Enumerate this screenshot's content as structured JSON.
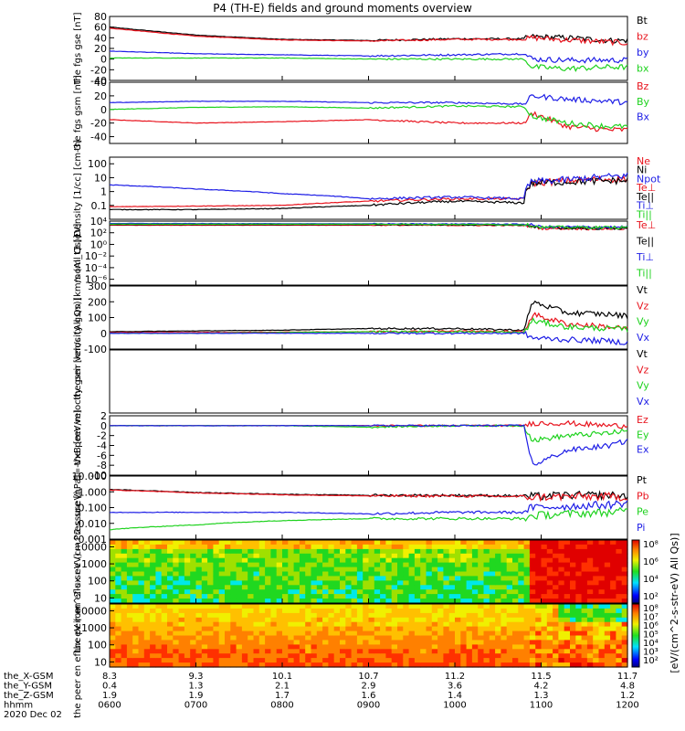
{
  "title": "P4 (TH-E) fields and ground moments overview",
  "colors": {
    "black": "#000000",
    "red": "#e8141e",
    "green": "#1ed21e",
    "blue": "#1e1ee6"
  },
  "chart_data": [
    {
      "type": "line",
      "title": "the fgs gse [nT]",
      "ylabel": "the fgs gse [nT]",
      "ylim": [
        -40,
        80
      ],
      "yticks": [
        "80",
        "60",
        "40",
        "20",
        "0",
        "-20",
        "-40"
      ],
      "series": [
        {
          "name": "Bt",
          "color": "black",
          "x": [
            6,
            7,
            8,
            9,
            10,
            10.8,
            10.9,
            11.3,
            11.8,
            12
          ],
          "values": [
            60,
            45,
            37,
            35,
            38,
            38,
            42,
            40,
            35,
            35
          ]
        },
        {
          "name": "bz",
          "color": "red",
          "x": [
            6,
            7,
            8,
            9,
            10,
            10.8,
            10.9,
            11.3,
            11.8,
            12
          ],
          "values": [
            58,
            43,
            36,
            34,
            37,
            37,
            40,
            36,
            32,
            30
          ]
        },
        {
          "name": "by",
          "color": "blue",
          "x": [
            6,
            7,
            8,
            9,
            10,
            10.8,
            10.9,
            11.3,
            11.8,
            12
          ],
          "values": [
            15,
            10,
            8,
            6,
            8,
            10,
            0,
            -2,
            -2,
            -2
          ]
        },
        {
          "name": "bx",
          "color": "green",
          "x": [
            6,
            7,
            8,
            9,
            10,
            10.8,
            10.9,
            11.3,
            11.8,
            12
          ],
          "values": [
            2,
            2,
            2,
            0,
            0,
            0,
            -15,
            -18,
            -15,
            -15
          ]
        }
      ],
      "legend": [
        "Bt",
        "bz",
        "by",
        "bx"
      ]
    },
    {
      "type": "line",
      "title": "the fgs gsm [nT]",
      "ylabel": "the fgs gsm [nT]",
      "ylim": [
        -50,
        40
      ],
      "yticks": [
        "40",
        "20",
        "0",
        "-20",
        "-40"
      ],
      "series": [
        {
          "name": "Bz",
          "color": "red",
          "x": [
            6,
            7,
            8,
            9,
            10,
            10.8,
            10.9,
            11.3,
            11.8,
            12
          ],
          "values": [
            -15,
            -20,
            -18,
            -15,
            -20,
            -20,
            -5,
            -25,
            -30,
            -30
          ]
        },
        {
          "name": "By",
          "color": "green",
          "x": [
            6,
            7,
            8,
            9,
            10,
            10.8,
            10.9,
            11.3,
            11.8,
            12
          ],
          "values": [
            0,
            3,
            4,
            2,
            5,
            4,
            -10,
            -20,
            -25,
            -25
          ]
        },
        {
          "name": "Bx",
          "color": "blue",
          "x": [
            6,
            7,
            8,
            9,
            10,
            10.8,
            10.9,
            11.3,
            11.8,
            12
          ],
          "values": [
            10,
            12,
            12,
            10,
            10,
            8,
            20,
            15,
            12,
            10
          ]
        }
      ],
      "legend": [
        "Bz",
        "By",
        "Bx"
      ]
    },
    {
      "type": "line",
      "title": "Density [1/cc] [cm-3]",
      "ylabel": "Density [1/cc] [cm-3]",
      "yscale": "log",
      "ylim": [
        0.01,
        300
      ],
      "yticks": [
        "100",
        "10",
        "1",
        "0.1"
      ],
      "series": [
        {
          "name": "Ne",
          "color": "red",
          "x": [
            6,
            7,
            8,
            9,
            10,
            10.8,
            10.9,
            11.3,
            11.8,
            12
          ],
          "values": [
            0.08,
            0.09,
            0.1,
            0.2,
            0.3,
            0.3,
            4,
            6,
            8,
            8
          ]
        },
        {
          "name": "Ni",
          "color": "black",
          "x": [
            6,
            7,
            8,
            9,
            10,
            10.8,
            10.9,
            11.3,
            11.8,
            12
          ],
          "values": [
            0.05,
            0.05,
            0.06,
            0.1,
            0.2,
            0.15,
            4,
            5,
            6,
            6
          ]
        },
        {
          "name": "Npot",
          "color": "blue",
          "x": [
            6,
            7,
            8,
            9,
            10,
            10.8,
            10.9,
            11.3,
            11.8,
            12
          ],
          "values": [
            3,
            1.5,
            0.7,
            0.3,
            0.4,
            0.3,
            5,
            7,
            12,
            14
          ]
        }
      ],
      "legend": [
        "Ne",
        "Ni",
        "Npot",
        "Te⊥",
        "Te||",
        "Ti⊥",
        "Ti||"
      ]
    },
    {
      "type": "line",
      "title": "mom_t3 [eV]",
      "ylabel": "mom_t3 [eV]",
      "yscale": "log",
      "ylim": [
        1e-07,
        10000
      ],
      "yticks": [
        "10⁴",
        "10²",
        "10⁰",
        "10⁻²",
        "10⁻⁴",
        "10⁻⁶"
      ],
      "series": [
        {
          "name": "Te⊥",
          "color": "red",
          "x": [
            6,
            9,
            10.8,
            11,
            12
          ],
          "values": [
            2000,
            2000,
            1800,
            600,
            500
          ]
        },
        {
          "name": "Te||",
          "color": "black",
          "x": [
            6,
            9,
            10.8,
            11,
            12
          ],
          "values": [
            2500,
            2500,
            2000,
            700,
            600
          ]
        },
        {
          "name": "Ti⊥",
          "color": "blue",
          "x": [
            6,
            9,
            10.8,
            11,
            12
          ],
          "values": [
            4000,
            3500,
            3000,
            1000,
            900
          ]
        },
        {
          "name": "Ti||",
          "color": "green",
          "x": [
            6,
            9,
            10.8,
            11,
            12
          ],
          "values": [
            3000,
            3000,
            2500,
            900,
            800
          ]
        }
      ]
    },
    {
      "type": "line",
      "title": "the peir velocity gsm [km/s (All Qs)]",
      "ylabel": "the peir velocity gsm [km/s (All Qs)]",
      "ylim": [
        -100,
        300
      ],
      "yticks": [
        "300",
        "200",
        "100",
        "0",
        "-100"
      ],
      "series": [
        {
          "name": "Vt",
          "color": "black",
          "x": [
            6,
            7,
            8,
            9,
            10,
            10.8,
            10.9,
            11.3,
            11.8,
            12
          ],
          "values": [
            10,
            15,
            20,
            30,
            30,
            20,
            200,
            130,
            120,
            110
          ]
        },
        {
          "name": "Vz",
          "color": "red",
          "x": [
            6,
            7,
            8,
            9,
            10,
            10.8,
            10.9,
            11.3,
            11.8,
            12
          ],
          "values": [
            5,
            5,
            8,
            10,
            15,
            10,
            120,
            60,
            40,
            30
          ]
        },
        {
          "name": "Vy",
          "color": "green",
          "x": [
            6,
            7,
            8,
            9,
            10,
            10.8,
            10.9,
            11.3,
            11.8,
            12
          ],
          "values": [
            0,
            0,
            5,
            10,
            10,
            5,
            80,
            40,
            30,
            25
          ]
        },
        {
          "name": "Vx",
          "color": "blue",
          "x": [
            6,
            7,
            8,
            9,
            10,
            10.8,
            10.9,
            11.3,
            11.8,
            12
          ],
          "values": [
            0,
            0,
            0,
            0,
            0,
            0,
            -30,
            -40,
            -50,
            -60
          ]
        }
      ],
      "legend": [
        "Vt",
        "Vz",
        "Vy",
        "Vx"
      ]
    },
    {
      "type": "line",
      "title": "the peer velocity gsm [km/s (All Qs)]",
      "ylabel": "the peer velocity gsm [km/s (All Qs)]",
      "series": [],
      "legend": [
        "Vt",
        "Vz",
        "Vy",
        "Vx"
      ]
    },
    {
      "type": "line",
      "title": "E=-VxB [mV/m]",
      "ylabel": "E=-VxB [mV/m]",
      "ylim": [
        -10,
        2
      ],
      "yticks": [
        "2",
        "0",
        "-2",
        "-4",
        "-6",
        "-8",
        "-10"
      ],
      "series": [
        {
          "name": "Ez",
          "color": "red",
          "x": [
            6,
            7,
            8,
            9,
            10,
            10.8,
            10.9,
            11.3,
            11.8,
            12
          ],
          "values": [
            0,
            0,
            0,
            0,
            0,
            0,
            0.5,
            0.5,
            0,
            0
          ]
        },
        {
          "name": "Ey",
          "color": "green",
          "x": [
            6,
            7,
            8,
            9,
            10,
            10.8,
            10.9,
            11.3,
            11.8,
            12
          ],
          "values": [
            0,
            0,
            0,
            -0.3,
            0,
            0,
            -3,
            -2,
            -1.5,
            -1
          ]
        },
        {
          "name": "Ex",
          "color": "blue",
          "x": [
            6,
            7,
            8,
            9,
            10,
            10.8,
            10.9,
            11.3,
            11.8,
            12
          ],
          "values": [
            0,
            0,
            0,
            0,
            0,
            0,
            -8,
            -5,
            -4,
            -3
          ]
        }
      ],
      "legend": [
        "Ez",
        "Ey",
        "Ex"
      ]
    },
    {
      "type": "line",
      "title": "Pressure [nPa]",
      "ylabel": "Pressure [nPa]",
      "yscale": "log",
      "ylim": [
        0.001,
        10
      ],
      "yticks": [
        "10.000",
        "1.000",
        "0.100",
        "0.010",
        "0.001"
      ],
      "series": [
        {
          "name": "Pt",
          "color": "black",
          "x": [
            6,
            7,
            8,
            9,
            10,
            10.8,
            10.9,
            11.3,
            11.8,
            12
          ],
          "values": [
            1.4,
            0.9,
            0.7,
            0.6,
            0.6,
            0.55,
            0.5,
            0.6,
            0.6,
            0.5
          ]
        },
        {
          "name": "Pb",
          "color": "red",
          "x": [
            6,
            7,
            8,
            9,
            10,
            10.8,
            10.9,
            11.3,
            11.8,
            12
          ],
          "values": [
            1.3,
            0.85,
            0.65,
            0.55,
            0.55,
            0.5,
            0.45,
            0.5,
            0.5,
            0.45
          ]
        },
        {
          "name": "Pe",
          "color": "green",
          "x": [
            6,
            7,
            8,
            9,
            10,
            10.8,
            10.9,
            11.3,
            11.8,
            12
          ],
          "values": [
            0.004,
            0.008,
            0.015,
            0.02,
            0.02,
            0.02,
            0.03,
            0.04,
            0.05,
            0.06
          ]
        },
        {
          "name": "Pi",
          "color": "blue",
          "x": [
            6,
            7,
            8,
            9,
            10,
            10.8,
            10.9,
            11.3,
            11.8,
            12
          ],
          "values": [
            0.05,
            0.05,
            0.05,
            0.04,
            0.05,
            0.05,
            0.1,
            0.12,
            0.15,
            0.2
          ]
        }
      ],
      "legend": [
        "Pt",
        "Pb",
        "Pe",
        "Pi"
      ]
    },
    {
      "type": "heatmap",
      "title": "the peir en eflux eV (cm^2-s-sr-eV)",
      "ylabel": "the peir en eflux eV (cm^2-s-sr-eV)",
      "yscale": "log",
      "ylim": [
        5,
        25000
      ],
      "yticks": [
        "10000",
        "1000",
        "100",
        "10"
      ]
    },
    {
      "type": "heatmap",
      "title": "the peer en eflux eV (cm^2-s-sr-eV)",
      "ylabel": "the peer en eflux eV (cm^2-s-sr-eV)",
      "yscale": "log",
      "ylim": [
        5,
        25000
      ],
      "yticks": [
        "10000",
        "1000",
        "100",
        "10"
      ]
    }
  ],
  "colorbar": {
    "label": "[eV/(cm^2-s-str-eV) All Qs)]",
    "upper_ticks": [
      "10⁸",
      "10⁶",
      "10⁴",
      "10²"
    ],
    "lower_ticks": [
      "10⁸",
      "10⁷",
      "10⁶",
      "10⁵",
      "10⁴",
      "10³",
      "10²"
    ]
  },
  "xaxis": {
    "tick_hours": [
      6,
      7,
      8,
      9,
      10,
      11,
      12
    ],
    "rows": [
      {
        "label": "the_X-GSM",
        "values": [
          "8.3",
          "9.3",
          "10.1",
          "10.7",
          "11.2",
          "11.5",
          "11.7"
        ]
      },
      {
        "label": "the_Y-GSM",
        "values": [
          "0.4",
          "1.3",
          "2.1",
          "2.9",
          "3.6",
          "4.2",
          "4.8"
        ]
      },
      {
        "label": "the_Z-GSM",
        "values": [
          "1.9",
          "1.9",
          "1.7",
          "1.6",
          "1.4",
          "1.3",
          "1.2"
        ]
      },
      {
        "label": "hhmm",
        "values": [
          "0600",
          "0700",
          "0800",
          "0900",
          "1000",
          "1100",
          "1200"
        ]
      }
    ],
    "date": "2020 Dec 02"
  }
}
